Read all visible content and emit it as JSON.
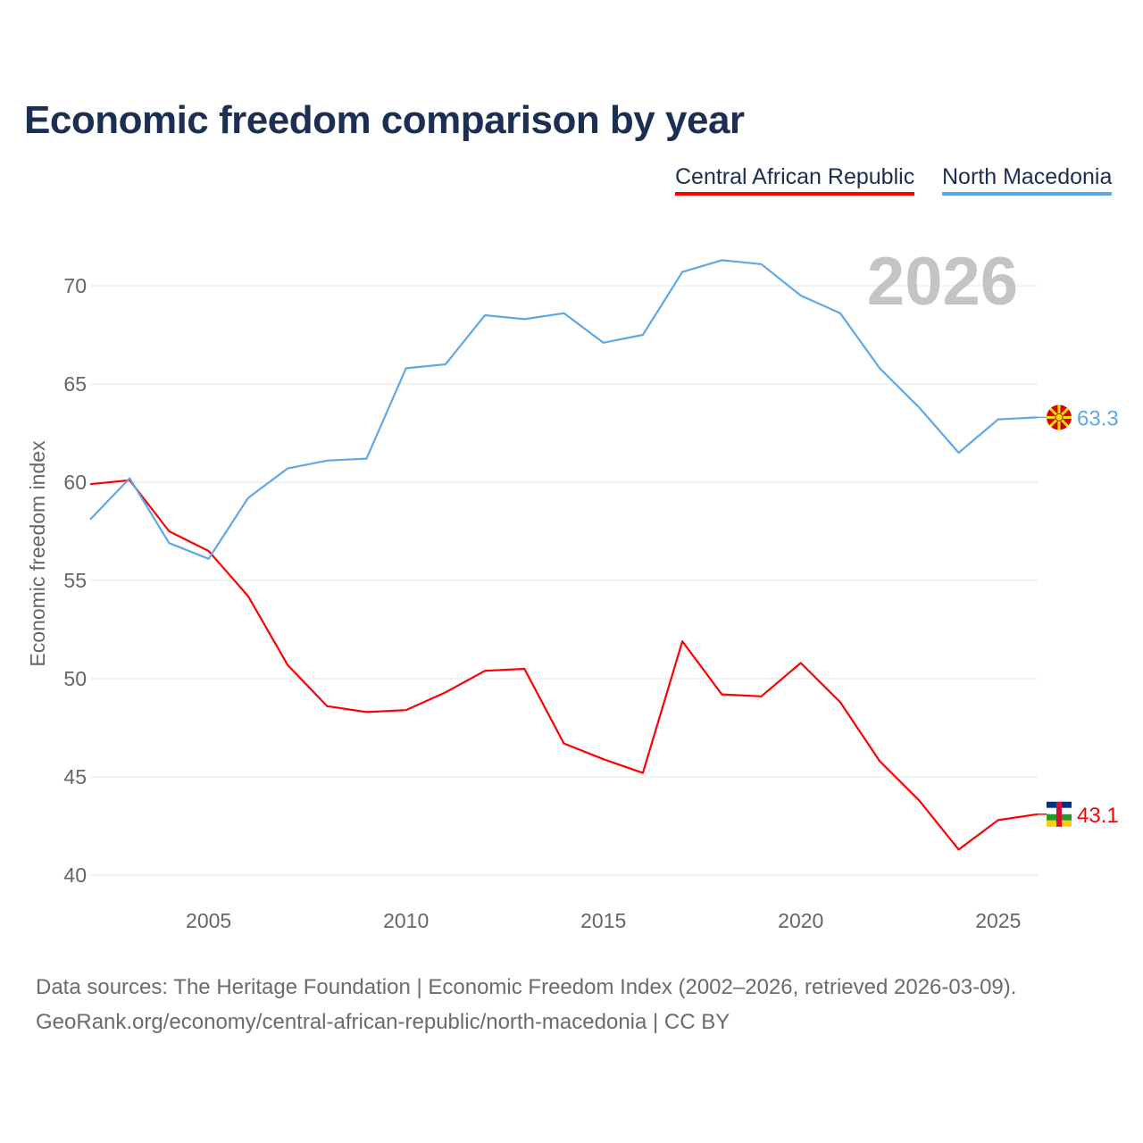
{
  "chart_data": {
    "type": "line",
    "title": "Economic freedom comparison by year",
    "xlabel": "",
    "ylabel": "Economic freedom index",
    "x": [
      2002,
      2003,
      2004,
      2005,
      2006,
      2007,
      2008,
      2009,
      2010,
      2011,
      2012,
      2013,
      2014,
      2015,
      2016,
      2017,
      2018,
      2019,
      2020,
      2021,
      2022,
      2023,
      2024,
      2025,
      2026
    ],
    "series": [
      {
        "name": "Central African Republic",
        "color": "#ff0000",
        "end_label": "43.1",
        "values": [
          59.9,
          60.1,
          57.5,
          56.5,
          54.2,
          50.7,
          48.6,
          48.3,
          48.4,
          49.3,
          50.4,
          50.5,
          46.7,
          45.9,
          45.2,
          51.9,
          49.2,
          49.1,
          50.8,
          48.8,
          45.8,
          43.8,
          41.3,
          42.8,
          43.1
        ]
      },
      {
        "name": "North Macedonia",
        "color": "#5fa8e8",
        "end_label": "63.3",
        "values": [
          58.1,
          60.2,
          56.9,
          56.1,
          59.2,
          60.7,
          61.1,
          61.2,
          65.8,
          66.0,
          68.5,
          68.3,
          68.6,
          67.1,
          67.5,
          70.7,
          71.3,
          71.1,
          69.5,
          68.6,
          65.8,
          63.8,
          61.5,
          63.2,
          63.3
        ]
      }
    ],
    "ylim": [
      40,
      72
    ],
    "xlim": [
      2002,
      2026
    ],
    "yticks": [
      40,
      45,
      50,
      55,
      60,
      65,
      70
    ],
    "xticks": [
      2005,
      2010,
      2015,
      2020,
      2025
    ],
    "year_watermark": "2026",
    "legend_position": "top-right",
    "grid": true
  },
  "source_line1": "Data sources: The Heritage Foundation | Economic Freedom Index (2002–2026, retrieved 2026-03-09).",
  "source_line2": "GeoRank.org/economy/central-african-republic/north-macedonia | CC BY"
}
